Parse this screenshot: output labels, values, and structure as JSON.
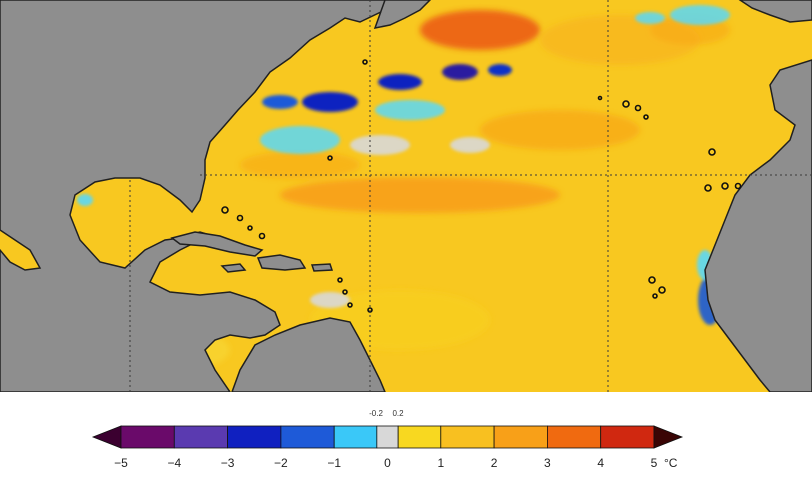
{
  "colorbar": {
    "unit": "°C",
    "neutral_band": [
      "-0.2",
      "0.2"
    ],
    "ticks": [
      "−5",
      "−4",
      "−3",
      "−2",
      "−1",
      "0",
      "1",
      "2",
      "3",
      "4",
      "5"
    ],
    "colors": [
      "#3b0030",
      "#6a0a6a",
      "#5a3ab0",
      "#1020c0",
      "#1e5ad8",
      "#1aa0f0",
      "#5ad8f8",
      "#d8d8d8",
      "#f8e020",
      "#f8c820",
      "#f8a818",
      "#f88010",
      "#e84010",
      "#b01810",
      "#6a0a0a",
      "#3a0505"
    ]
  },
  "map": {
    "land_color": "#8e8e8e",
    "ocean_base_color": "#f8c820",
    "graticule_style": "dotted"
  }
}
